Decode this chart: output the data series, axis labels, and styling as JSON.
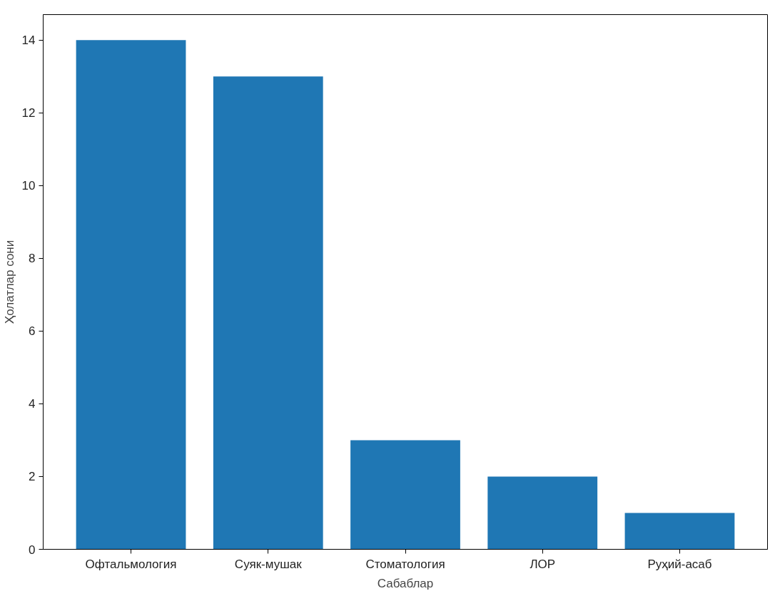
{
  "chart_data": {
    "type": "bar",
    "xlabel": "Сабаблар",
    "ylabel": "Ҳолатлар сони",
    "categories": [
      "Офтальмология",
      "Суяк-мушак",
      "Стоматология",
      "ЛОР",
      "Руҳий-асаб"
    ],
    "values": [
      14,
      13,
      3,
      2,
      1
    ],
    "color": "#1f77b4",
    "ylim": [
      0,
      14.7
    ],
    "yticks": [
      0,
      2,
      4,
      6,
      8,
      10,
      12,
      14
    ],
    "grid": false
  }
}
